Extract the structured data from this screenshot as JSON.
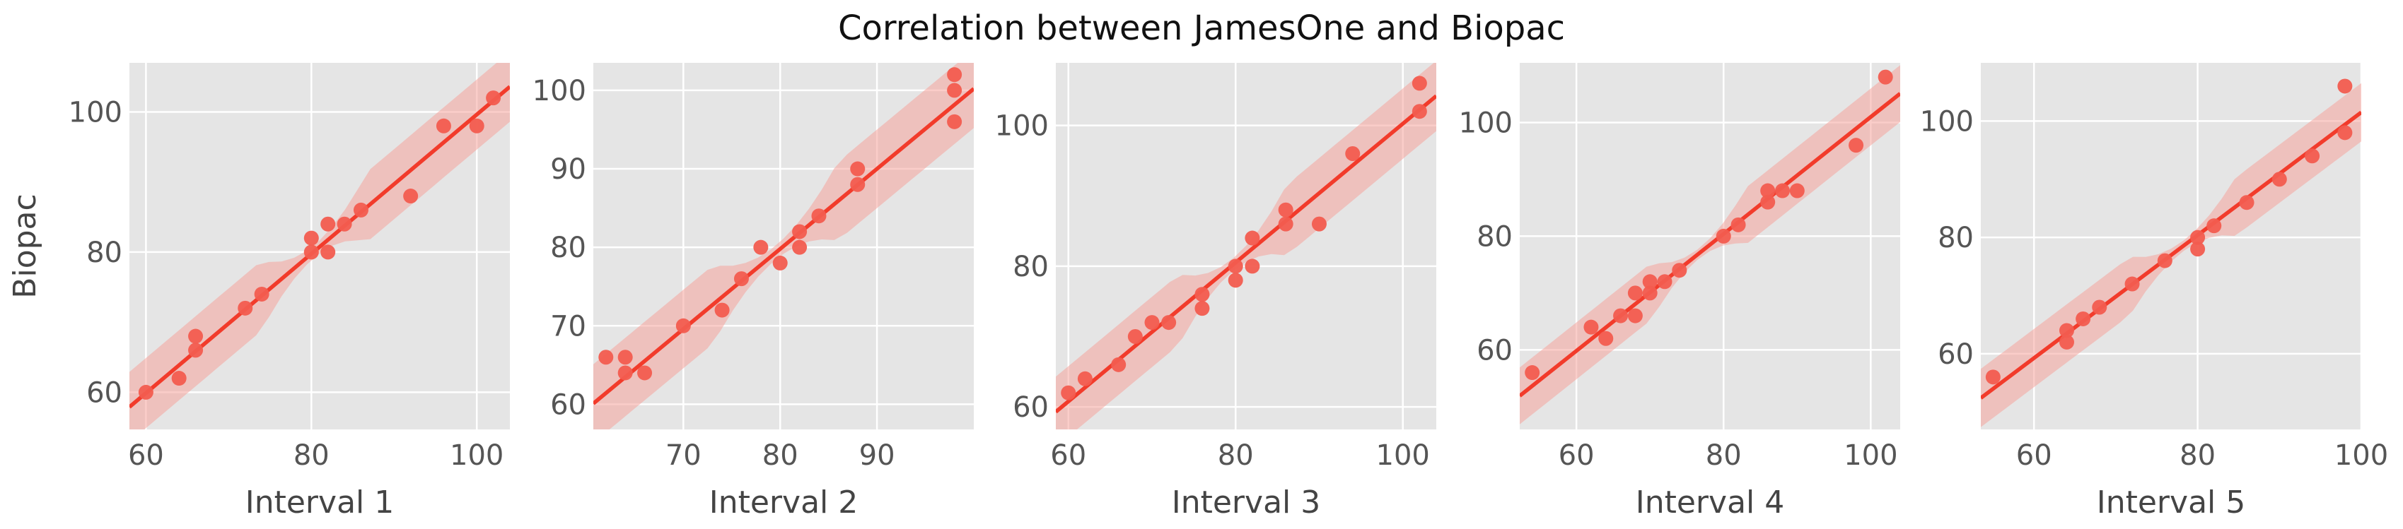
{
  "figure": {
    "title": "Correlation between JamesOne and Biopac",
    "colors": {
      "panel_bg": "#e5e5e5",
      "grid": "#ffffff",
      "points": "#f25c4f",
      "line": "#f23b2b",
      "ci_band": "#f5a49c",
      "text": "#444444",
      "tick_text": "#555555"
    }
  },
  "chart_data": [
    {
      "type": "scatter",
      "xlabel": "Interval 1",
      "ylabel": "Biopac",
      "xlim": [
        58,
        104
      ],
      "ylim": [
        54.7,
        107
      ],
      "xticks": [
        60,
        80,
        100
      ],
      "yticks": [
        60,
        80,
        100
      ],
      "regression": {
        "x": [
          58,
          104
        ],
        "y": [
          57.9,
          103.6
        ]
      },
      "grid": true,
      "points": [
        {
          "x": 60,
          "y": 60
        },
        {
          "x": 64,
          "y": 62
        },
        {
          "x": 66,
          "y": 66
        },
        {
          "x": 66,
          "y": 68
        },
        {
          "x": 72,
          "y": 72
        },
        {
          "x": 74,
          "y": 74
        },
        {
          "x": 80,
          "y": 80
        },
        {
          "x": 80,
          "y": 82
        },
        {
          "x": 82,
          "y": 80
        },
        {
          "x": 82,
          "y": 84
        },
        {
          "x": 84,
          "y": 84
        },
        {
          "x": 86,
          "y": 86
        },
        {
          "x": 92,
          "y": 88
        },
        {
          "x": 96,
          "y": 98
        },
        {
          "x": 100,
          "y": 98
        },
        {
          "x": 102,
          "y": 102
        }
      ]
    },
    {
      "type": "scatter",
      "xlabel": "Interval 2",
      "ylabel": "",
      "xlim": [
        60.7,
        100
      ],
      "ylim": [
        56.8,
        103.5
      ],
      "xticks": [
        70,
        80,
        90
      ],
      "yticks": [
        60,
        70,
        80,
        90,
        100
      ],
      "regression": {
        "x": [
          60.7,
          100
        ],
        "y": [
          60.1,
          100.2
        ]
      },
      "grid": true,
      "points": [
        {
          "x": 62,
          "y": 66
        },
        {
          "x": 64,
          "y": 64
        },
        {
          "x": 64,
          "y": 66
        },
        {
          "x": 66,
          "y": 64
        },
        {
          "x": 70,
          "y": 70
        },
        {
          "x": 74,
          "y": 72
        },
        {
          "x": 76,
          "y": 76
        },
        {
          "x": 78,
          "y": 80
        },
        {
          "x": 80,
          "y": 78
        },
        {
          "x": 82,
          "y": 80
        },
        {
          "x": 82,
          "y": 82
        },
        {
          "x": 84,
          "y": 84
        },
        {
          "x": 88,
          "y": 88
        },
        {
          "x": 88,
          "y": 90
        },
        {
          "x": 98,
          "y": 96
        },
        {
          "x": 98,
          "y": 100
        },
        {
          "x": 98,
          "y": 102
        }
      ]
    },
    {
      "type": "scatter",
      "xlabel": "Interval 3",
      "ylabel": "",
      "xlim": [
        58.5,
        104
      ],
      "ylim": [
        56.8,
        108.9
      ],
      "xticks": [
        60,
        80,
        100
      ],
      "yticks": [
        60,
        80,
        100
      ],
      "regression": {
        "x": [
          58.5,
          104
        ],
        "y": [
          59.3,
          104.2
        ]
      },
      "grid": true,
      "points": [
        {
          "x": 60,
          "y": 62
        },
        {
          "x": 62,
          "y": 64
        },
        {
          "x": 66,
          "y": 66
        },
        {
          "x": 68,
          "y": 70
        },
        {
          "x": 70,
          "y": 72
        },
        {
          "x": 72,
          "y": 72
        },
        {
          "x": 76,
          "y": 74
        },
        {
          "x": 76,
          "y": 76
        },
        {
          "x": 80,
          "y": 78
        },
        {
          "x": 80,
          "y": 80
        },
        {
          "x": 82,
          "y": 80
        },
        {
          "x": 82,
          "y": 84
        },
        {
          "x": 86,
          "y": 86
        },
        {
          "x": 86,
          "y": 88
        },
        {
          "x": 90,
          "y": 86
        },
        {
          "x": 94,
          "y": 96
        },
        {
          "x": 102,
          "y": 102
        },
        {
          "x": 102,
          "y": 106
        }
      ]
    },
    {
      "type": "scatter",
      "xlabel": "Interval 4",
      "ylabel": "",
      "xlim": [
        52.3,
        104
      ],
      "ylim": [
        46,
        110.5
      ],
      "xticks": [
        60,
        80,
        100
      ],
      "yticks": [
        60,
        80,
        100
      ],
      "regression": {
        "x": [
          52.3,
          104
        ],
        "y": [
          51.9,
          105.1
        ]
      },
      "grid": true,
      "points": [
        {
          "x": 54,
          "y": 56
        },
        {
          "x": 62,
          "y": 64
        },
        {
          "x": 64,
          "y": 62
        },
        {
          "x": 66,
          "y": 66
        },
        {
          "x": 68,
          "y": 66
        },
        {
          "x": 68,
          "y": 70
        },
        {
          "x": 70,
          "y": 70
        },
        {
          "x": 70,
          "y": 72
        },
        {
          "x": 72,
          "y": 72
        },
        {
          "x": 74,
          "y": 74
        },
        {
          "x": 80,
          "y": 80
        },
        {
          "x": 82,
          "y": 82
        },
        {
          "x": 86,
          "y": 86
        },
        {
          "x": 86,
          "y": 88
        },
        {
          "x": 88,
          "y": 88
        },
        {
          "x": 90,
          "y": 88
        },
        {
          "x": 98,
          "y": 96
        },
        {
          "x": 102,
          "y": 108
        }
      ]
    },
    {
      "type": "scatter",
      "xlabel": "Interval 5",
      "ylabel": "",
      "xlim": [
        53.5,
        100
      ],
      "ylim": [
        47,
        110
      ],
      "xticks": [
        60,
        80,
        100
      ],
      "yticks": [
        60,
        80,
        100
      ],
      "regression": {
        "x": [
          53.5,
          100
        ],
        "y": [
          52.4,
          101.5
        ]
      },
      "grid": true,
      "points": [
        {
          "x": 55,
          "y": 56
        },
        {
          "x": 64,
          "y": 62
        },
        {
          "x": 64,
          "y": 64
        },
        {
          "x": 66,
          "y": 66
        },
        {
          "x": 68,
          "y": 68
        },
        {
          "x": 72,
          "y": 72
        },
        {
          "x": 76,
          "y": 76
        },
        {
          "x": 80,
          "y": 78
        },
        {
          "x": 80,
          "y": 80
        },
        {
          "x": 82,
          "y": 82
        },
        {
          "x": 86,
          "y": 86
        },
        {
          "x": 90,
          "y": 90
        },
        {
          "x": 94,
          "y": 94
        },
        {
          "x": 98,
          "y": 98
        },
        {
          "x": 98,
          "y": 106
        }
      ]
    }
  ]
}
